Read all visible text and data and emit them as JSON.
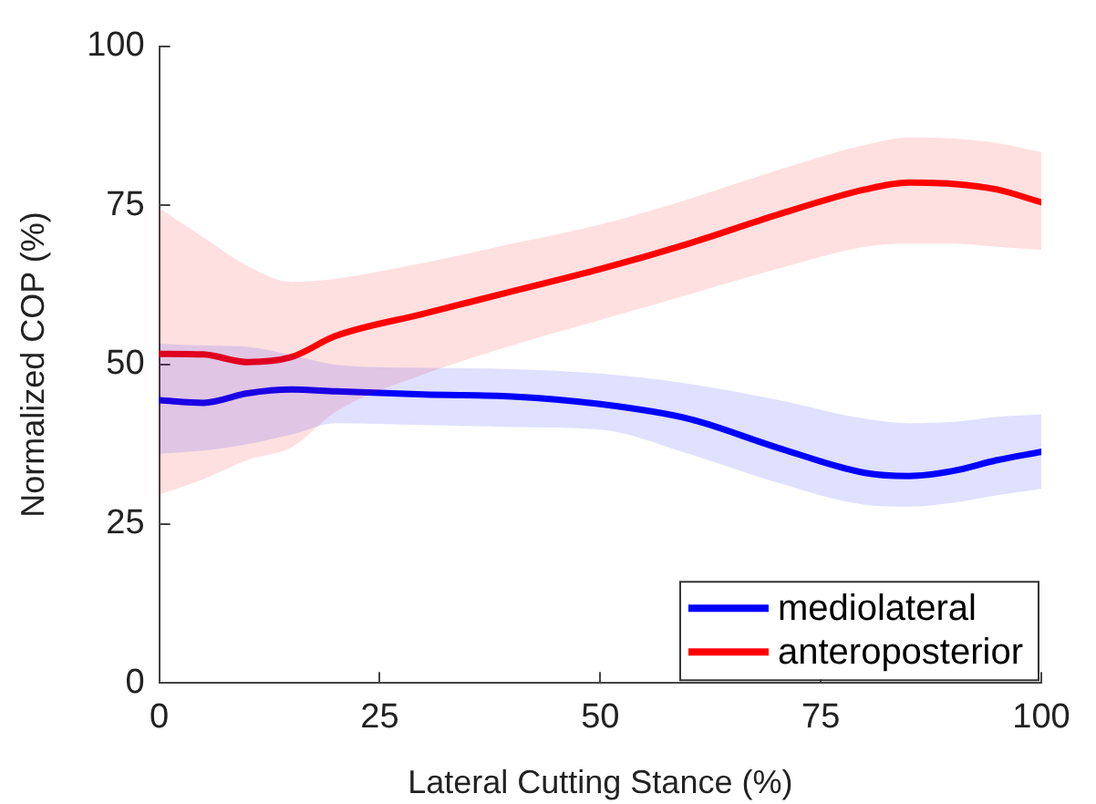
{
  "chart_data": {
    "type": "line",
    "xlabel": "Lateral Cutting Stance (%)",
    "ylabel": "Normalized COP (%)",
    "x": [
      0,
      5,
      10,
      15,
      20,
      30,
      40,
      50,
      60,
      70,
      80,
      85,
      90,
      95,
      100
    ],
    "xlim": [
      0,
      100
    ],
    "xticks": [
      0,
      25,
      50,
      75,
      100
    ],
    "ylim": [
      0,
      100
    ],
    "yticks": [
      0,
      25,
      50,
      75,
      100
    ],
    "grid": false,
    "legend": "bottom right",
    "line_style": "solid",
    "marker": "none",
    "series": [
      {
        "name": "mediolateral",
        "color": "#0000ff",
        "values": [
          44.4,
          44,
          45.5,
          46.1,
          45.8,
          45.3,
          45,
          43.8,
          41.5,
          37,
          33,
          32.5,
          33.3,
          35,
          36.3
        ],
        "lower": [
          36,
          36.5,
          37.5,
          39,
          40.8,
          40.5,
          40.2,
          39.8,
          36,
          31.5,
          28,
          27.7,
          28.3,
          29.5,
          30.5
        ],
        "upper": [
          53.3,
          53,
          52.8,
          51.5,
          50,
          49.5,
          49.3,
          48.6,
          47,
          44.5,
          41.5,
          40.8,
          41,
          41.8,
          42.2
        ]
      },
      {
        "name": "anteroposterior",
        "color": "#ff0000",
        "values": [
          51.7,
          51.6,
          50.4,
          51.2,
          54.5,
          58,
          61.5,
          65,
          69,
          73.5,
          77.5,
          78.6,
          78.4,
          77.5,
          75.5
        ],
        "lower": [
          29.6,
          32,
          35,
          37,
          42.6,
          48.5,
          53,
          57,
          61,
          65,
          68.5,
          69,
          69,
          68.5,
          68
        ],
        "upper": [
          74.6,
          70,
          65.5,
          63,
          63.5,
          66,
          69,
          72,
          76,
          80.5,
          84.5,
          85.7,
          85.5,
          84.8,
          83.4
        ]
      }
    ]
  }
}
